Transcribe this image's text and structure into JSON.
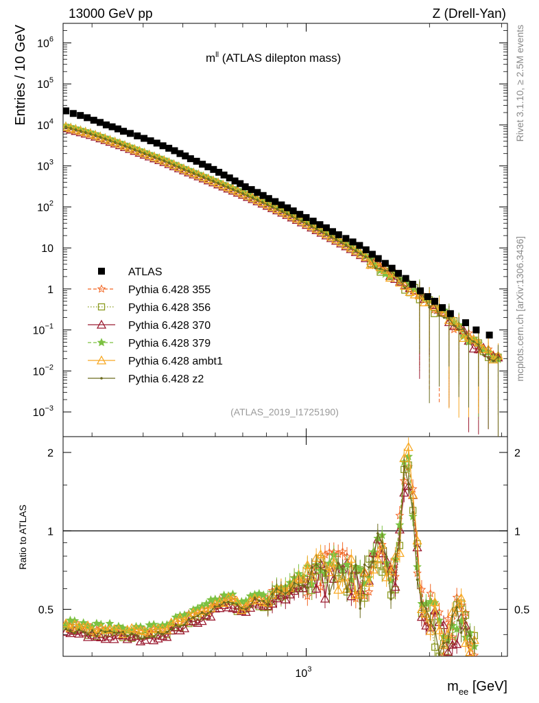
{
  "header": {
    "beam": "13000 GeV pp",
    "process": "Z (Drell-Yan)",
    "title_main": "m",
    "title_sup": "ll",
    "title_rest": " (ATLAS dilepton mass)",
    "analysis_id": "(ATLAS_2019_I1725190)",
    "side_top": "Rivet 3.1.10, ≥ 2.5M events",
    "side_bottom": "mcplots.cern.ch [arXiv:1306.3436]"
  },
  "axes": {
    "main_ylabel": "Entries / 10 GeV",
    "ratio_ylabel": "Ratio to ATLAS",
    "xlabel_main": "m",
    "xlabel_sub": "ee",
    "xlabel_unit": " [GeV]",
    "main_yticks": [
      {
        "value": 0.001,
        "base": "10",
        "exp": "−3"
      },
      {
        "value": 0.01,
        "base": "10",
        "exp": "−2"
      },
      {
        "value": 0.1,
        "base": "10",
        "exp": "−1"
      },
      {
        "value": 1,
        "base": "1",
        "exp": ""
      },
      {
        "value": 10,
        "base": "10",
        "exp": ""
      },
      {
        "value": 100,
        "base": "10",
        "exp": "2"
      },
      {
        "value": 1000,
        "base": "10",
        "exp": "3"
      },
      {
        "value": 10000,
        "base": "10",
        "exp": "4"
      },
      {
        "value": 100000,
        "base": "10",
        "exp": "5"
      },
      {
        "value": 1000000,
        "base": "10",
        "exp": "6"
      }
    ],
    "ratio_yticks": [
      {
        "value": 0.5,
        "label": "0.5"
      },
      {
        "value": 1,
        "label": "1"
      },
      {
        "value": 2,
        "label": "2"
      }
    ],
    "xticks": [
      {
        "value": 1000,
        "base": "10",
        "exp": "3"
      }
    ]
  },
  "chart_data": {
    "type": "scatter",
    "x_scale": "log",
    "y_scale": "log",
    "xlim": [
      255,
      3100
    ],
    "ylim": [
      0.00025,
      3000000
    ],
    "ratio_ylim": [
      0.33,
      2.3
    ],
    "legend_position": "left",
    "series": [
      {
        "name": "ATLAS",
        "color": "#000000",
        "marker": "square",
        "style": "none"
      },
      {
        "name": "Pythia 6.428 355",
        "color": "#f26522",
        "marker": "star",
        "style": "dashed"
      },
      {
        "name": "Pythia 6.428 356",
        "color": "#8a9a1e",
        "marker": "open-square",
        "style": "dotted"
      },
      {
        "name": "Pythia 6.428 370",
        "color": "#9b1b30",
        "marker": "open-triangle",
        "style": "solid"
      },
      {
        "name": "Pythia 6.428 379",
        "color": "#7cc142",
        "marker": "star",
        "style": "dashed"
      },
      {
        "name": "Pythia 6.428 ambt1",
        "color": "#f7a823",
        "marker": "open-triangle",
        "style": "solid"
      },
      {
        "name": "Pythia 6.428 z2",
        "color": "#6b6a1c",
        "marker": "dot",
        "style": "solid"
      }
    ],
    "data_points": [
      [
        259,
        22000
      ],
      [
        270,
        19000
      ],
      [
        281,
        17000
      ],
      [
        292,
        15000
      ],
      [
        303,
        13000
      ],
      [
        314,
        11500
      ],
      [
        325,
        10000
      ],
      [
        336,
        9000
      ],
      [
        347,
        8000
      ],
      [
        358,
        7000
      ],
      [
        372,
        6200
      ],
      [
        387,
        5400
      ],
      [
        402,
        4700
      ],
      [
        417,
        4100
      ],
      [
        432,
        3600
      ],
      [
        447,
        3100
      ],
      [
        462,
        2700
      ],
      [
        477,
        2350
      ],
      [
        492,
        2000
      ],
      [
        507,
        1750
      ],
      [
        522,
        1500
      ],
      [
        540,
        1300
      ],
      [
        558,
        1100
      ],
      [
        576,
        950
      ],
      [
        594,
        820
      ],
      [
        612,
        700
      ],
      [
        630,
        600
      ],
      [
        650,
        510
      ],
      [
        670,
        430
      ],
      [
        690,
        370
      ],
      [
        710,
        310
      ],
      [
        735,
        265
      ],
      [
        760,
        225
      ],
      [
        785,
        190
      ],
      [
        810,
        160
      ],
      [
        840,
        135
      ],
      [
        870,
        112
      ],
      [
        900,
        95
      ],
      [
        930,
        80
      ],
      [
        965,
        66
      ],
      [
        1000,
        55
      ],
      [
        1040,
        45
      ],
      [
        1080,
        37
      ],
      [
        1120,
        31
      ],
      [
        1160,
        25
      ],
      [
        1200,
        21
      ],
      [
        1250,
        17
      ],
      [
        1300,
        14
      ],
      [
        1350,
        11.5
      ],
      [
        1400,
        9
      ],
      [
        1450,
        7
      ],
      [
        1500,
        5.5
      ],
      [
        1560,
        4.2
      ],
      [
        1620,
        3.2
      ],
      [
        1680,
        2.4
      ],
      [
        1750,
        1.8
      ],
      [
        1820,
        1.3
      ],
      [
        1900,
        0.9
      ],
      [
        1980,
        0.65
      ],
      [
        2060,
        0.5
      ],
      [
        2150,
        0.35
      ],
      [
        2250,
        0.25
      ],
      [
        2450,
        0.15
      ],
      [
        2600,
        0.1
      ],
      [
        2800,
        0.075
      ]
    ],
    "mc_model": [
      [
        259,
        9000
      ],
      [
        300,
        6000
      ],
      [
        350,
        3500
      ],
      [
        400,
        2100
      ],
      [
        450,
        1350
      ],
      [
        500,
        860
      ],
      [
        600,
        410
      ],
      [
        700,
        215
      ],
      [
        800,
        118
      ],
      [
        900,
        68
      ],
      [
        1000,
        40
      ],
      [
        1100,
        24
      ],
      [
        1200,
        15
      ],
      [
        1300,
        9.5
      ],
      [
        1400,
        6
      ],
      [
        1500,
        3.9
      ],
      [
        1600,
        2.5
      ],
      [
        1700,
        1.6
      ],
      [
        1800,
        1.05
      ],
      [
        1900,
        0.7
      ],
      [
        2000,
        0.45
      ],
      [
        2200,
        0.2
      ],
      [
        2400,
        0.09
      ],
      [
        2600,
        0.045
      ],
      [
        2800,
        0.025
      ],
      [
        3000,
        0.016
      ]
    ],
    "ratio_model": [
      [
        259,
        0.43
      ],
      [
        300,
        0.415
      ],
      [
        350,
        0.41
      ],
      [
        400,
        0.405
      ],
      [
        450,
        0.42
      ],
      [
        500,
        0.45
      ],
      [
        550,
        0.48
      ],
      [
        600,
        0.52
      ],
      [
        650,
        0.55
      ],
      [
        700,
        0.5
      ],
      [
        750,
        0.55
      ],
      [
        800,
        0.53
      ],
      [
        850,
        0.6
      ],
      [
        900,
        0.58
      ],
      [
        950,
        0.65
      ],
      [
        1000,
        0.62
      ],
      [
        1050,
        0.7
      ],
      [
        1100,
        0.68
      ],
      [
        1150,
        0.72
      ],
      [
        1200,
        0.7
      ],
      [
        1250,
        0.72
      ],
      [
        1300,
        0.68
      ],
      [
        1350,
        0.62
      ],
      [
        1400,
        0.66
      ],
      [
        1450,
        0.74
      ],
      [
        1500,
        0.9
      ],
      [
        1550,
        0.75
      ],
      [
        1600,
        0.65
      ],
      [
        1650,
        0.72
      ],
      [
        1700,
        1.05
      ],
      [
        1750,
        2.1
      ],
      [
        1800,
        1.6
      ],
      [
        1850,
        0.9
      ],
      [
        1900,
        0.6
      ],
      [
        1950,
        0.55
      ],
      [
        2000,
        0.5
      ],
      [
        2100,
        0.42
      ],
      [
        2200,
        0.38
      ],
      [
        2300,
        0.45
      ],
      [
        2400,
        0.5
      ],
      [
        2500,
        0.4
      ],
      [
        2600,
        0.35
      ]
    ]
  }
}
